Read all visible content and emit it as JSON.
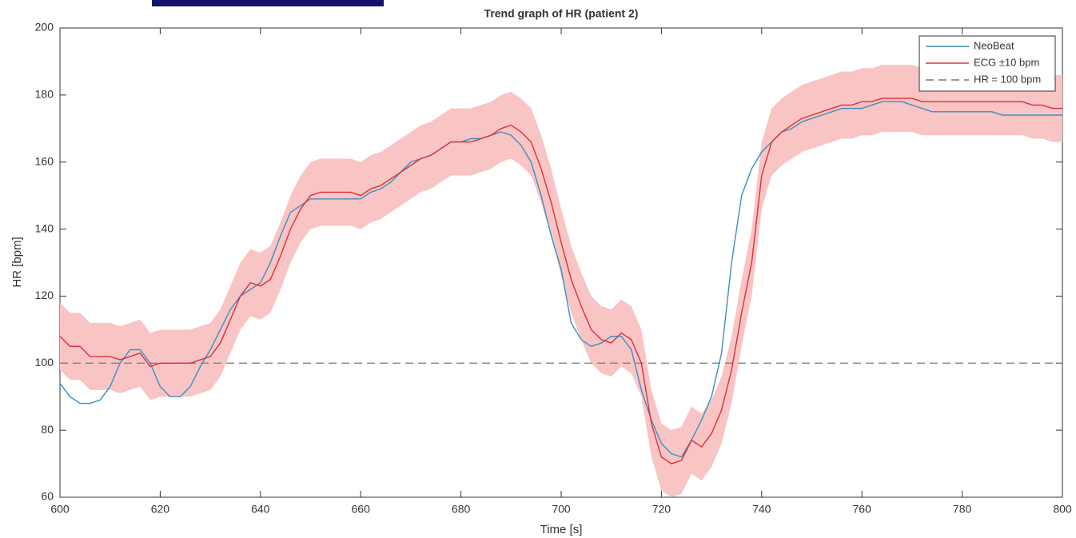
{
  "chart_data": {
    "type": "line",
    "title": "Trend graph of HR (patient 2)",
    "x_label": "Time [s]",
    "y_label": "HR [bpm]",
    "x": [
      600,
      602,
      604,
      606,
      608,
      610,
      612,
      614,
      616,
      618,
      620,
      622,
      624,
      626,
      628,
      630,
      632,
      634,
      636,
      638,
      640,
      642,
      644,
      646,
      648,
      650,
      652,
      654,
      656,
      658,
      660,
      662,
      664,
      666,
      668,
      670,
      672,
      674,
      676,
      678,
      680,
      682,
      684,
      686,
      688,
      690,
      692,
      694,
      696,
      698,
      700,
      702,
      704,
      706,
      708,
      710,
      712,
      714,
      716,
      718,
      720,
      722,
      724,
      726,
      728,
      730,
      732,
      734,
      736,
      738,
      740,
      742,
      744,
      746,
      748,
      750,
      752,
      754,
      756,
      758,
      760,
      762,
      764,
      766,
      768,
      770,
      772,
      774,
      776,
      778,
      780,
      782,
      784,
      786,
      788,
      790,
      792,
      794,
      796,
      798,
      800
    ],
    "series": [
      {
        "name": "NeoBeat",
        "color": "#3a8fc0",
        "values": [
          94,
          90,
          88,
          88,
          89,
          93,
          100,
          104,
          104,
          100,
          93,
          90,
          90,
          93,
          99,
          104,
          110,
          116,
          120,
          122,
          124,
          130,
          138,
          145,
          147,
          149,
          149,
          149,
          149,
          149,
          149,
          151,
          152,
          154,
          157,
          160,
          161,
          162,
          164,
          166,
          166,
          167,
          167,
          168,
          169,
          168,
          165,
          160,
          150,
          138,
          128,
          112,
          107,
          105,
          106,
          108,
          108,
          104,
          92,
          83,
          76,
          73,
          72,
          77,
          83,
          90,
          103,
          130,
          150,
          158,
          163,
          166,
          169,
          170,
          172,
          173,
          174,
          175,
          176,
          176,
          176,
          177,
          178,
          178,
          178,
          177,
          176,
          175,
          175,
          175,
          175,
          175,
          175,
          175,
          174,
          174,
          174,
          174,
          174,
          174,
          174
        ]
      },
      {
        "name": "ECG ±10 bpm",
        "color": "#d9303a",
        "band_color": "#f9c4c4",
        "error": 10,
        "values": [
          108,
          105,
          105,
          102,
          102,
          102,
          101,
          102,
          103,
          99,
          100,
          100,
          100,
          100,
          101,
          102,
          106,
          113,
          120,
          124,
          123,
          125,
          132,
          140,
          146,
          150,
          151,
          151,
          151,
          151,
          150,
          152,
          153,
          155,
          157,
          159,
          161,
          162,
          164,
          166,
          166,
          166,
          167,
          168,
          170,
          171,
          169,
          166,
          158,
          148,
          136,
          125,
          117,
          110,
          107,
          106,
          109,
          107,
          100,
          82,
          72,
          70,
          71,
          77,
          75,
          79,
          86,
          98,
          115,
          130,
          156,
          166,
          169,
          171,
          173,
          174,
          175,
          176,
          177,
          177,
          178,
          178,
          179,
          179,
          179,
          179,
          178,
          178,
          178,
          178,
          178,
          178,
          178,
          178,
          178,
          178,
          178,
          177,
          177,
          176,
          176
        ]
      }
    ],
    "hline": {
      "name": "HR = 100 bpm",
      "value": 100,
      "color": "#777777"
    },
    "xlim": [
      600,
      800
    ],
    "xticks": [
      600,
      620,
      640,
      660,
      680,
      700,
      720,
      740,
      760,
      780,
      800
    ],
    "ylim": [
      60,
      200
    ],
    "yticks": [
      60,
      80,
      100,
      120,
      140,
      160,
      180,
      200
    ],
    "grid": false,
    "legend": "top-right"
  }
}
